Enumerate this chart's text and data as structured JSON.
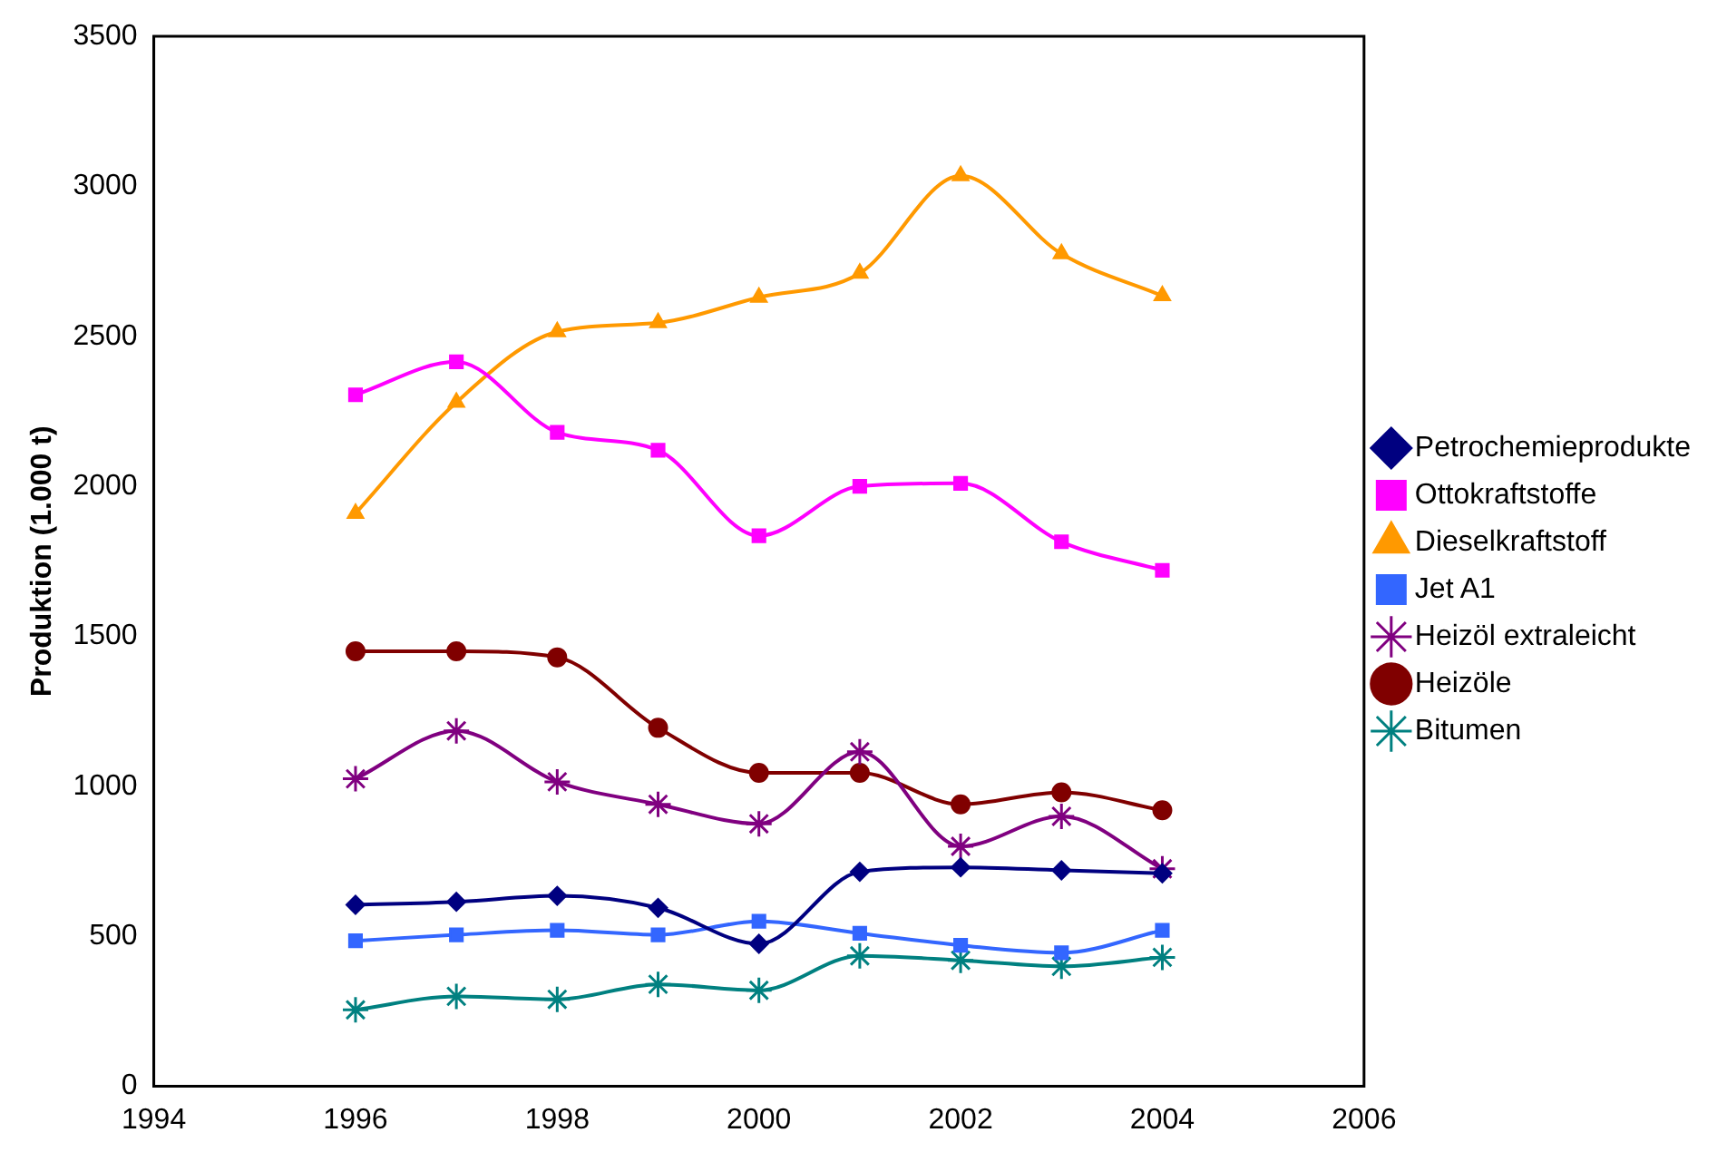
{
  "chart_data": {
    "type": "line",
    "ylabel": "Produktion (1.000 t)",
    "x": [
      1996,
      1997,
      1998,
      1999,
      2000,
      2001,
      2002,
      2003,
      2004
    ],
    "xlim": [
      1994,
      2006
    ],
    "xticks": [
      1994,
      1996,
      1998,
      2000,
      2002,
      2004,
      2006
    ],
    "ylim": [
      0,
      3500
    ],
    "yticks": [
      0,
      500,
      1000,
      1500,
      2000,
      2500,
      3000,
      3500
    ],
    "grid": false,
    "legend": "right",
    "line_style": "solid",
    "series": [
      {
        "name": "Petrochemieprodukte",
        "color": "#000080",
        "marker": "diamond",
        "values": [
          605,
          615,
          635,
          595,
          475,
          715,
          730,
          720,
          710
        ]
      },
      {
        "name": "Ottokraftstoffe",
        "color": "#ff00ff",
        "marker": "square",
        "values": [
          2305,
          2415,
          2180,
          2120,
          1835,
          2000,
          2010,
          1815,
          1720
        ]
      },
      {
        "name": "Dieselkraftstoff",
        "color": "#ff9900",
        "marker": "triangle",
        "values": [
          1910,
          2280,
          2515,
          2545,
          2630,
          2710,
          3035,
          2775,
          2635
        ]
      },
      {
        "name": "Jet A1",
        "color": "#3366ff",
        "marker": "square",
        "values": [
          485,
          505,
          520,
          505,
          550,
          510,
          470,
          445,
          520
        ]
      },
      {
        "name": "Heizöl extraleicht",
        "color": "#800080",
        "marker": "cross",
        "values": [
          1025,
          1185,
          1015,
          940,
          875,
          1115,
          800,
          900,
          725
        ]
      },
      {
        "name": "Heizöle",
        "color": "#800000",
        "marker": "circle",
        "values": [
          1450,
          1450,
          1430,
          1195,
          1045,
          1045,
          940,
          980,
          920
        ]
      },
      {
        "name": "Bitumen",
        "color": "#008080",
        "marker": "cross",
        "values": [
          255,
          300,
          290,
          340,
          320,
          435,
          420,
          400,
          430
        ]
      }
    ]
  }
}
